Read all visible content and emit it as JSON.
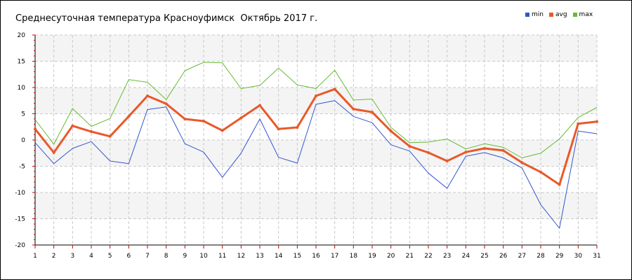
{
  "chart_data": {
    "type": "line",
    "title": "Среднесуточная температура Красноуфимск  Октябрь 2017 г.",
    "x": [
      1,
      2,
      3,
      4,
      5,
      6,
      7,
      8,
      9,
      10,
      11,
      12,
      13,
      14,
      15,
      16,
      17,
      18,
      19,
      20,
      21,
      22,
      23,
      24,
      25,
      26,
      27,
      28,
      29,
      30,
      31
    ],
    "xlim": [
      1,
      31
    ],
    "ylim": [
      -20,
      20
    ],
    "yticks": [
      -20,
      -15,
      -10,
      -5,
      0,
      5,
      10,
      15,
      20
    ],
    "grid": true,
    "legend_position": "top-right",
    "series": [
      {
        "name": "min",
        "color": "#3355cc",
        "values": [
          -0.5,
          -4.5,
          -1.6,
          -0.3,
          -4.0,
          -4.5,
          5.8,
          6.3,
          -0.7,
          -2.3,
          -7.1,
          -2.5,
          4.0,
          -3.3,
          -4.4,
          6.8,
          7.5,
          4.5,
          3.3,
          -0.9,
          -2.1,
          -6.3,
          -9.2,
          -3.1,
          -2.4,
          -3.4,
          -5.3,
          -12.3,
          -16.8,
          1.7,
          1.2
        ]
      },
      {
        "name": "avg",
        "color": "#e8592a",
        "values": [
          2.1,
          -2.4,
          2.7,
          1.6,
          0.7,
          4.5,
          8.4,
          6.9,
          4.0,
          3.6,
          1.8,
          4.2,
          6.6,
          2.1,
          2.4,
          8.4,
          9.7,
          5.9,
          5.3,
          1.7,
          -1.2,
          -2.4,
          -4.0,
          -2.3,
          -1.6,
          -2.0,
          -4.3,
          -6.1,
          -8.5,
          3.1,
          3.5
        ]
      },
      {
        "name": "max",
        "color": "#66bb33",
        "values": [
          3.9,
          -0.8,
          6.0,
          2.6,
          4.1,
          11.5,
          11.0,
          7.7,
          13.2,
          14.8,
          14.7,
          9.8,
          10.4,
          13.7,
          10.5,
          9.8,
          13.3,
          7.6,
          7.8,
          2.4,
          -0.5,
          -0.4,
          0.2,
          -1.7,
          -0.7,
          -1.4,
          -3.4,
          -2.5,
          0.2,
          4.3,
          6.2
        ]
      }
    ]
  }
}
